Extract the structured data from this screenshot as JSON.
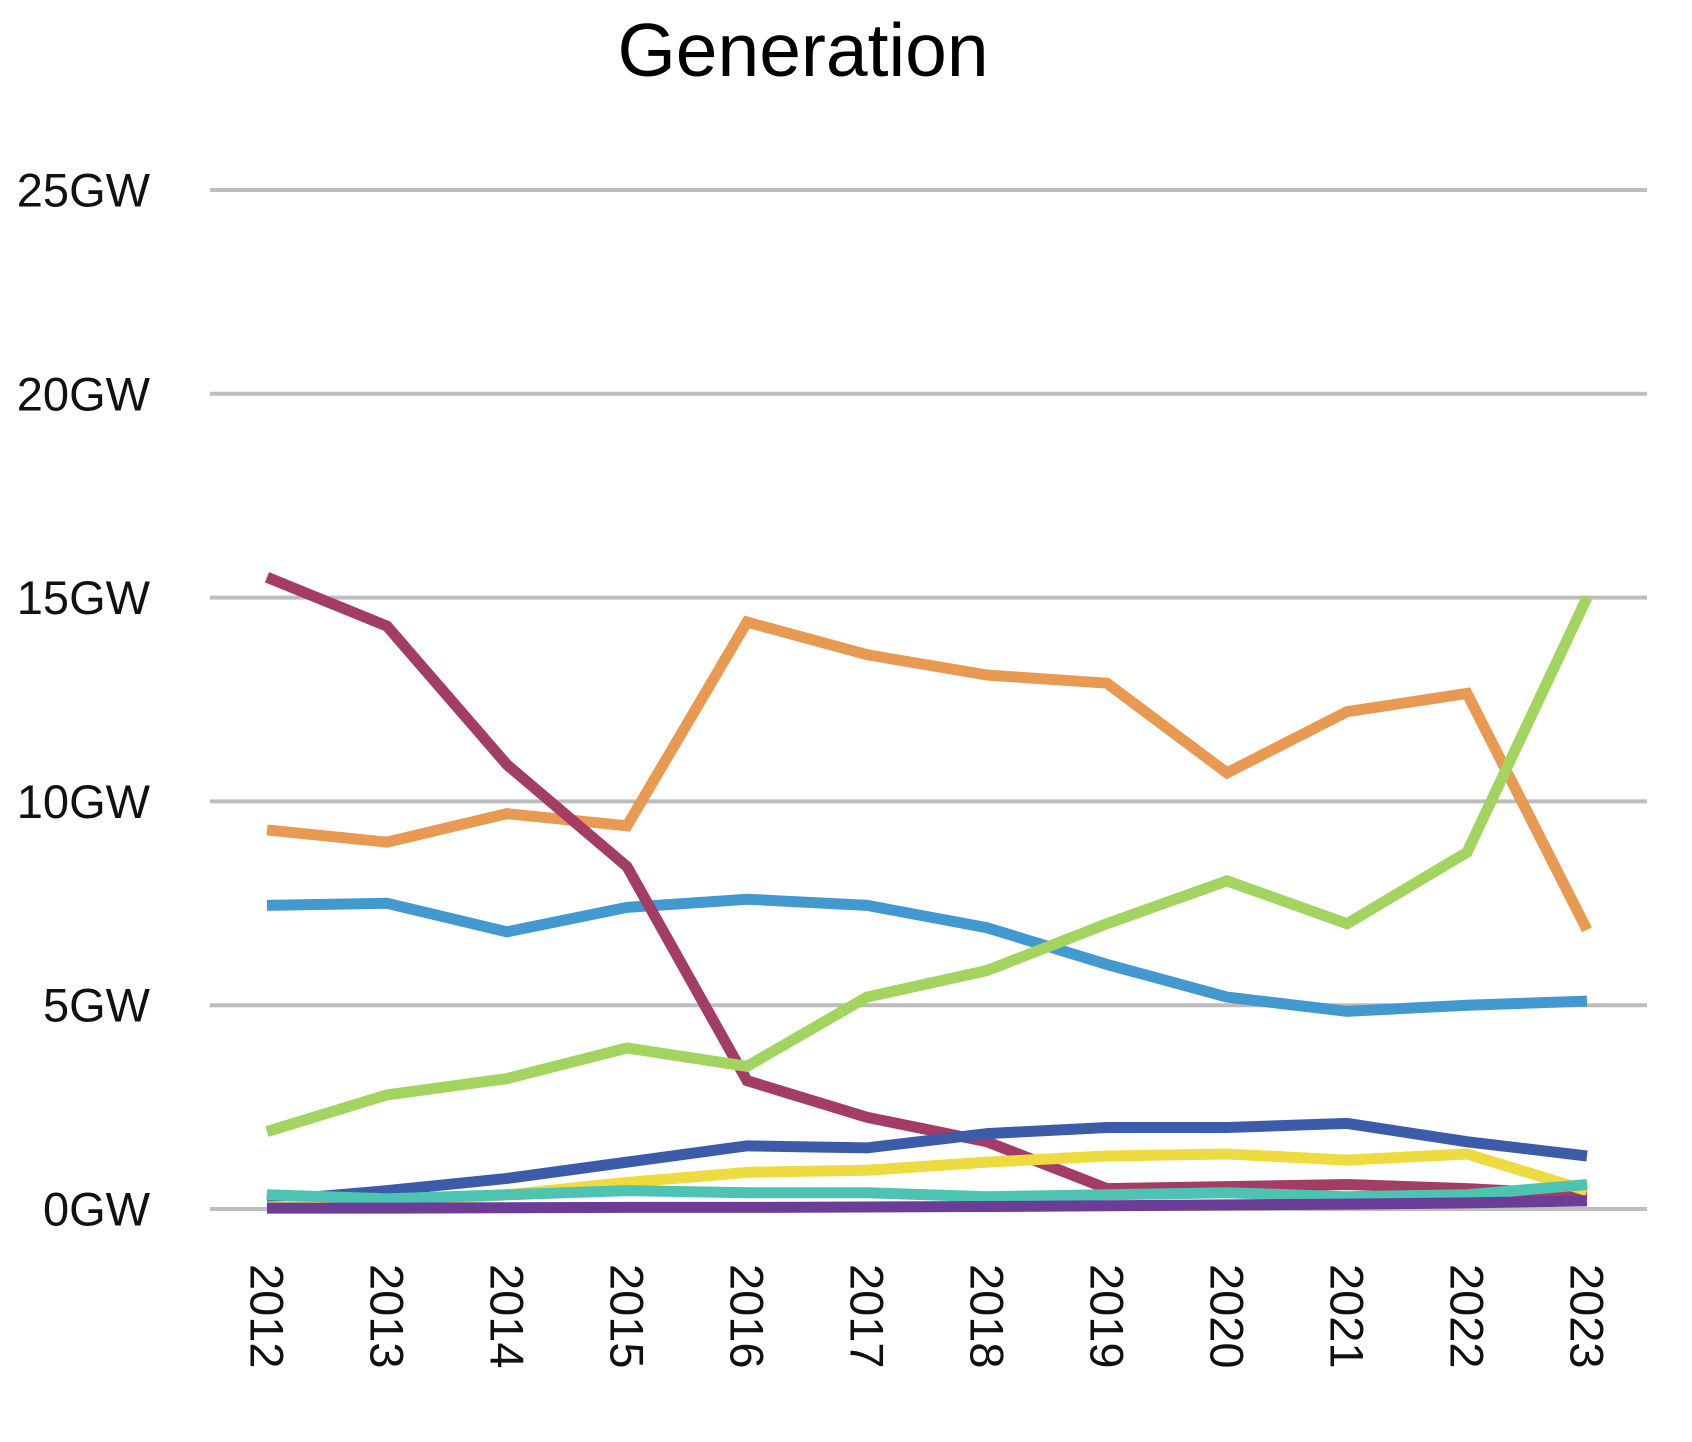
{
  "page": {
    "background_color": "#ffffff",
    "text_color": "#111111",
    "gridline_color": "#bdbdbd"
  },
  "chart_data": {
    "type": "line",
    "title": "Generation",
    "xlabel": "",
    "ylabel": "",
    "unit": "GW",
    "x_labels": [
      "2012",
      "2013",
      "2014",
      "2015",
      "2016",
      "2017",
      "2018",
      "2019",
      "2020",
      "2021",
      "2022",
      "2023"
    ],
    "y_tick_labels": [
      "25GW",
      "20GW",
      "15GW",
      "10GW",
      "5GW",
      "0GW"
    ],
    "y_tick_values": [
      25,
      20,
      15,
      10,
      5,
      0
    ],
    "ylim": [
      0,
      26.5
    ],
    "grid": true,
    "legend": "none",
    "x_tick_rotation_deg": 90,
    "series_draw_order": "first series is drawn at the bottom, last on top",
    "series": [
      {
        "name": "light-blue",
        "color": "#4299d0",
        "values": [
          7.45,
          7.5,
          6.8,
          7.4,
          7.6,
          7.45,
          6.9,
          6.0,
          5.2,
          4.85,
          5.0,
          5.1
        ]
      },
      {
        "name": "orange",
        "color": "#e89a52",
        "values": [
          9.3,
          9.0,
          9.7,
          9.4,
          14.4,
          13.6,
          13.1,
          12.9,
          10.7,
          12.2,
          12.65,
          6.85
        ]
      },
      {
        "name": "crimson",
        "color": "#a43d66",
        "values": [
          15.5,
          14.3,
          10.9,
          8.4,
          3.15,
          2.25,
          1.65,
          0.5,
          0.55,
          0.6,
          0.5,
          0.35
        ]
      },
      {
        "name": "green",
        "color": "#a2d45f",
        "values": [
          1.9,
          2.8,
          3.2,
          3.95,
          3.5,
          5.2,
          5.85,
          7.0,
          8.05,
          7.0,
          8.75,
          15.0
        ]
      },
      {
        "name": "dark-blue",
        "color": "#3c5ba8",
        "values": [
          0.2,
          0.45,
          0.75,
          1.15,
          1.55,
          1.5,
          1.85,
          2.0,
          2.0,
          2.1,
          1.65,
          1.3
        ]
      },
      {
        "name": "yellow",
        "color": "#eddb40",
        "values": [
          0.05,
          0.15,
          0.35,
          0.65,
          0.9,
          0.95,
          1.15,
          1.3,
          1.35,
          1.2,
          1.35,
          0.45
        ]
      },
      {
        "name": "teal",
        "color": "#4dc3b2",
        "values": [
          0.35,
          0.25,
          0.35,
          0.45,
          0.4,
          0.4,
          0.3,
          0.35,
          0.4,
          0.3,
          0.35,
          0.6
        ]
      },
      {
        "name": "purple",
        "color": "#6b3d96",
        "values": [
          0.02,
          0.02,
          0.03,
          0.04,
          0.04,
          0.05,
          0.06,
          0.08,
          0.1,
          0.12,
          0.15,
          0.2
        ]
      }
    ]
  }
}
